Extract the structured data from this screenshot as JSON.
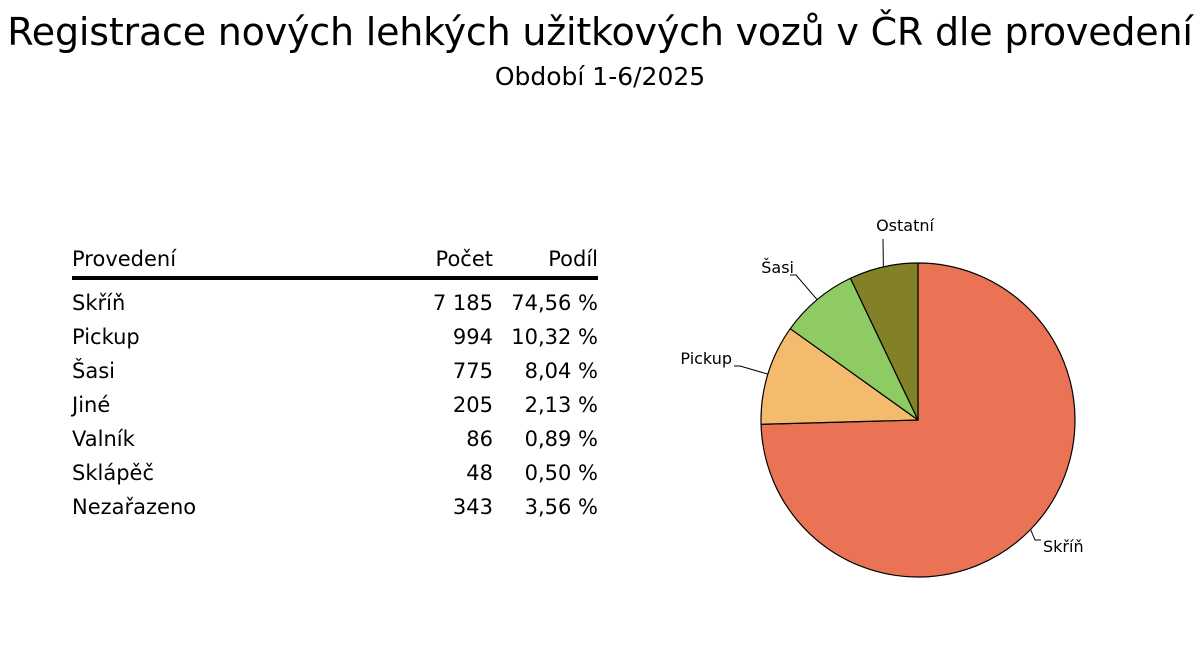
{
  "header": {
    "title": "Registrace nových lehkých užitkových vozů v ČR dle provedení",
    "subtitle": "Období 1-6/2025"
  },
  "table": {
    "columns": [
      "Provedení",
      "Počet",
      "Podíl"
    ],
    "rows": [
      {
        "name": "Skříň",
        "count": "7 185",
        "share": "74,56 %"
      },
      {
        "name": "Pickup",
        "count": "994",
        "share": "10,32 %"
      },
      {
        "name": "Šasi",
        "count": "775",
        "share": "8,04 %"
      },
      {
        "name": "Jiné",
        "count": "205",
        "share": "2,13 %"
      },
      {
        "name": "Valník",
        "count": "86",
        "share": "0,89 %"
      },
      {
        "name": "Sklápěč",
        "count": "48",
        "share": "0,50 %"
      },
      {
        "name": "Nezařazeno",
        "count": "343",
        "share": "3,56 %"
      }
    ]
  },
  "chart_data": {
    "type": "pie",
    "title": "Registrace nových lehkých užitkových vozů v ČR dle provedení",
    "subtitle": "Období 1-6/2025",
    "categories": [
      "Skříň",
      "Pickup",
      "Šasi",
      "Ostatní"
    ],
    "values": [
      7185,
      994,
      775,
      682
    ],
    "colors": [
      "#EB7355",
      "#F4BB6E",
      "#8FCB63",
      "#838128"
    ],
    "start": "12 o'clock",
    "direction": "clockwise",
    "labels": "outside with leader lines"
  }
}
